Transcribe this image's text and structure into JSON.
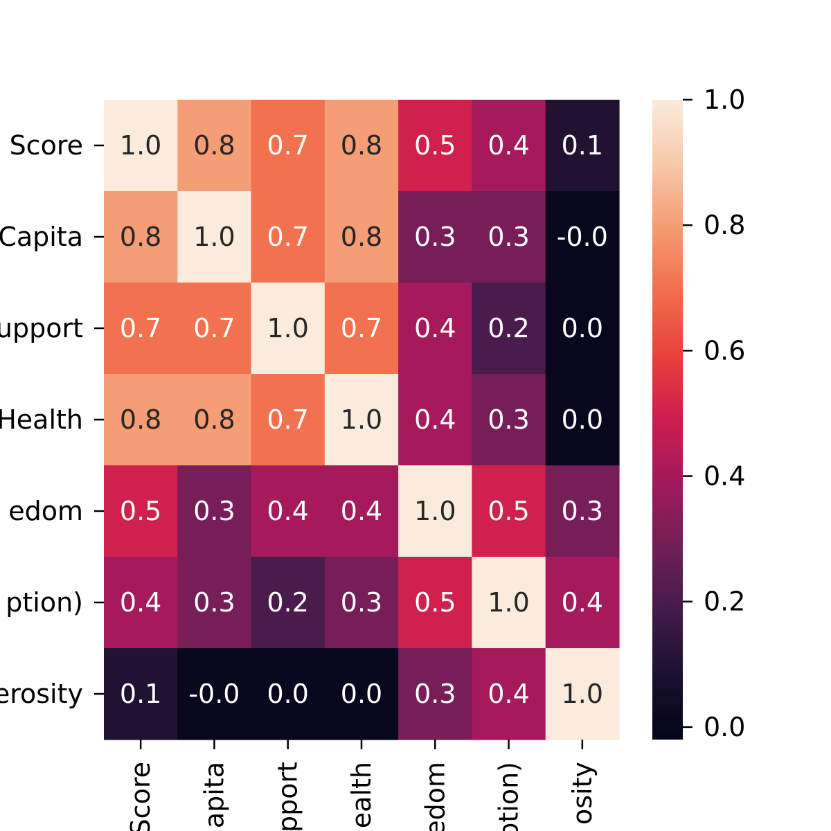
{
  "chart_data": {
    "type": "heatmap",
    "row_labels": [
      "Score",
      "Capita",
      "upport",
      "Health",
      "edom",
      "ption)",
      "erosity"
    ],
    "col_labels": [
      "Score",
      "apita",
      "pport",
      "ealth",
      "edom",
      "ption)",
      "osity"
    ],
    "values": [
      [
        1.0,
        0.8,
        0.7,
        0.8,
        0.5,
        0.4,
        0.1
      ],
      [
        0.8,
        1.0,
        0.7,
        0.8,
        0.3,
        0.3,
        -0.0
      ],
      [
        0.7,
        0.7,
        1.0,
        0.7,
        0.4,
        0.2,
        0.0
      ],
      [
        0.8,
        0.8,
        0.7,
        1.0,
        0.4,
        0.3,
        0.0
      ],
      [
        0.5,
        0.3,
        0.4,
        0.4,
        1.0,
        0.5,
        0.3
      ],
      [
        0.4,
        0.3,
        0.2,
        0.3,
        0.5,
        1.0,
        0.4
      ],
      [
        0.1,
        -0.0,
        0.0,
        0.0,
        0.3,
        0.4,
        1.0
      ]
    ],
    "labels": [
      [
        "1.0",
        "0.8",
        "0.7",
        "0.8",
        "0.5",
        "0.4",
        "0.1"
      ],
      [
        "0.8",
        "1.0",
        "0.7",
        "0.8",
        "0.3",
        "0.3",
        "-0.0"
      ],
      [
        "0.7",
        "0.7",
        "1.0",
        "0.7",
        "0.4",
        "0.2",
        "0.0"
      ],
      [
        "0.8",
        "0.8",
        "0.7",
        "1.0",
        "0.4",
        "0.3",
        "0.0"
      ],
      [
        "0.5",
        "0.3",
        "0.4",
        "0.4",
        "1.0",
        "0.5",
        "0.3"
      ],
      [
        "0.4",
        "0.3",
        "0.2",
        "0.3",
        "0.5",
        "1.0",
        "0.4"
      ],
      [
        "0.1",
        "-0.0",
        "0.0",
        "0.0",
        "0.3",
        "0.4",
        "1.0"
      ]
    ],
    "colorbar": {
      "range": [
        -0.02,
        1.0
      ],
      "ticks": [
        0.0,
        0.2,
        0.4,
        0.6,
        0.8,
        1.0
      ],
      "tick_labels": [
        "0.0",
        "0.2",
        "0.4",
        "0.6",
        "0.8",
        "1.0"
      ]
    },
    "colormap": "rocket",
    "grid": false,
    "legend": "colorbar-right"
  }
}
